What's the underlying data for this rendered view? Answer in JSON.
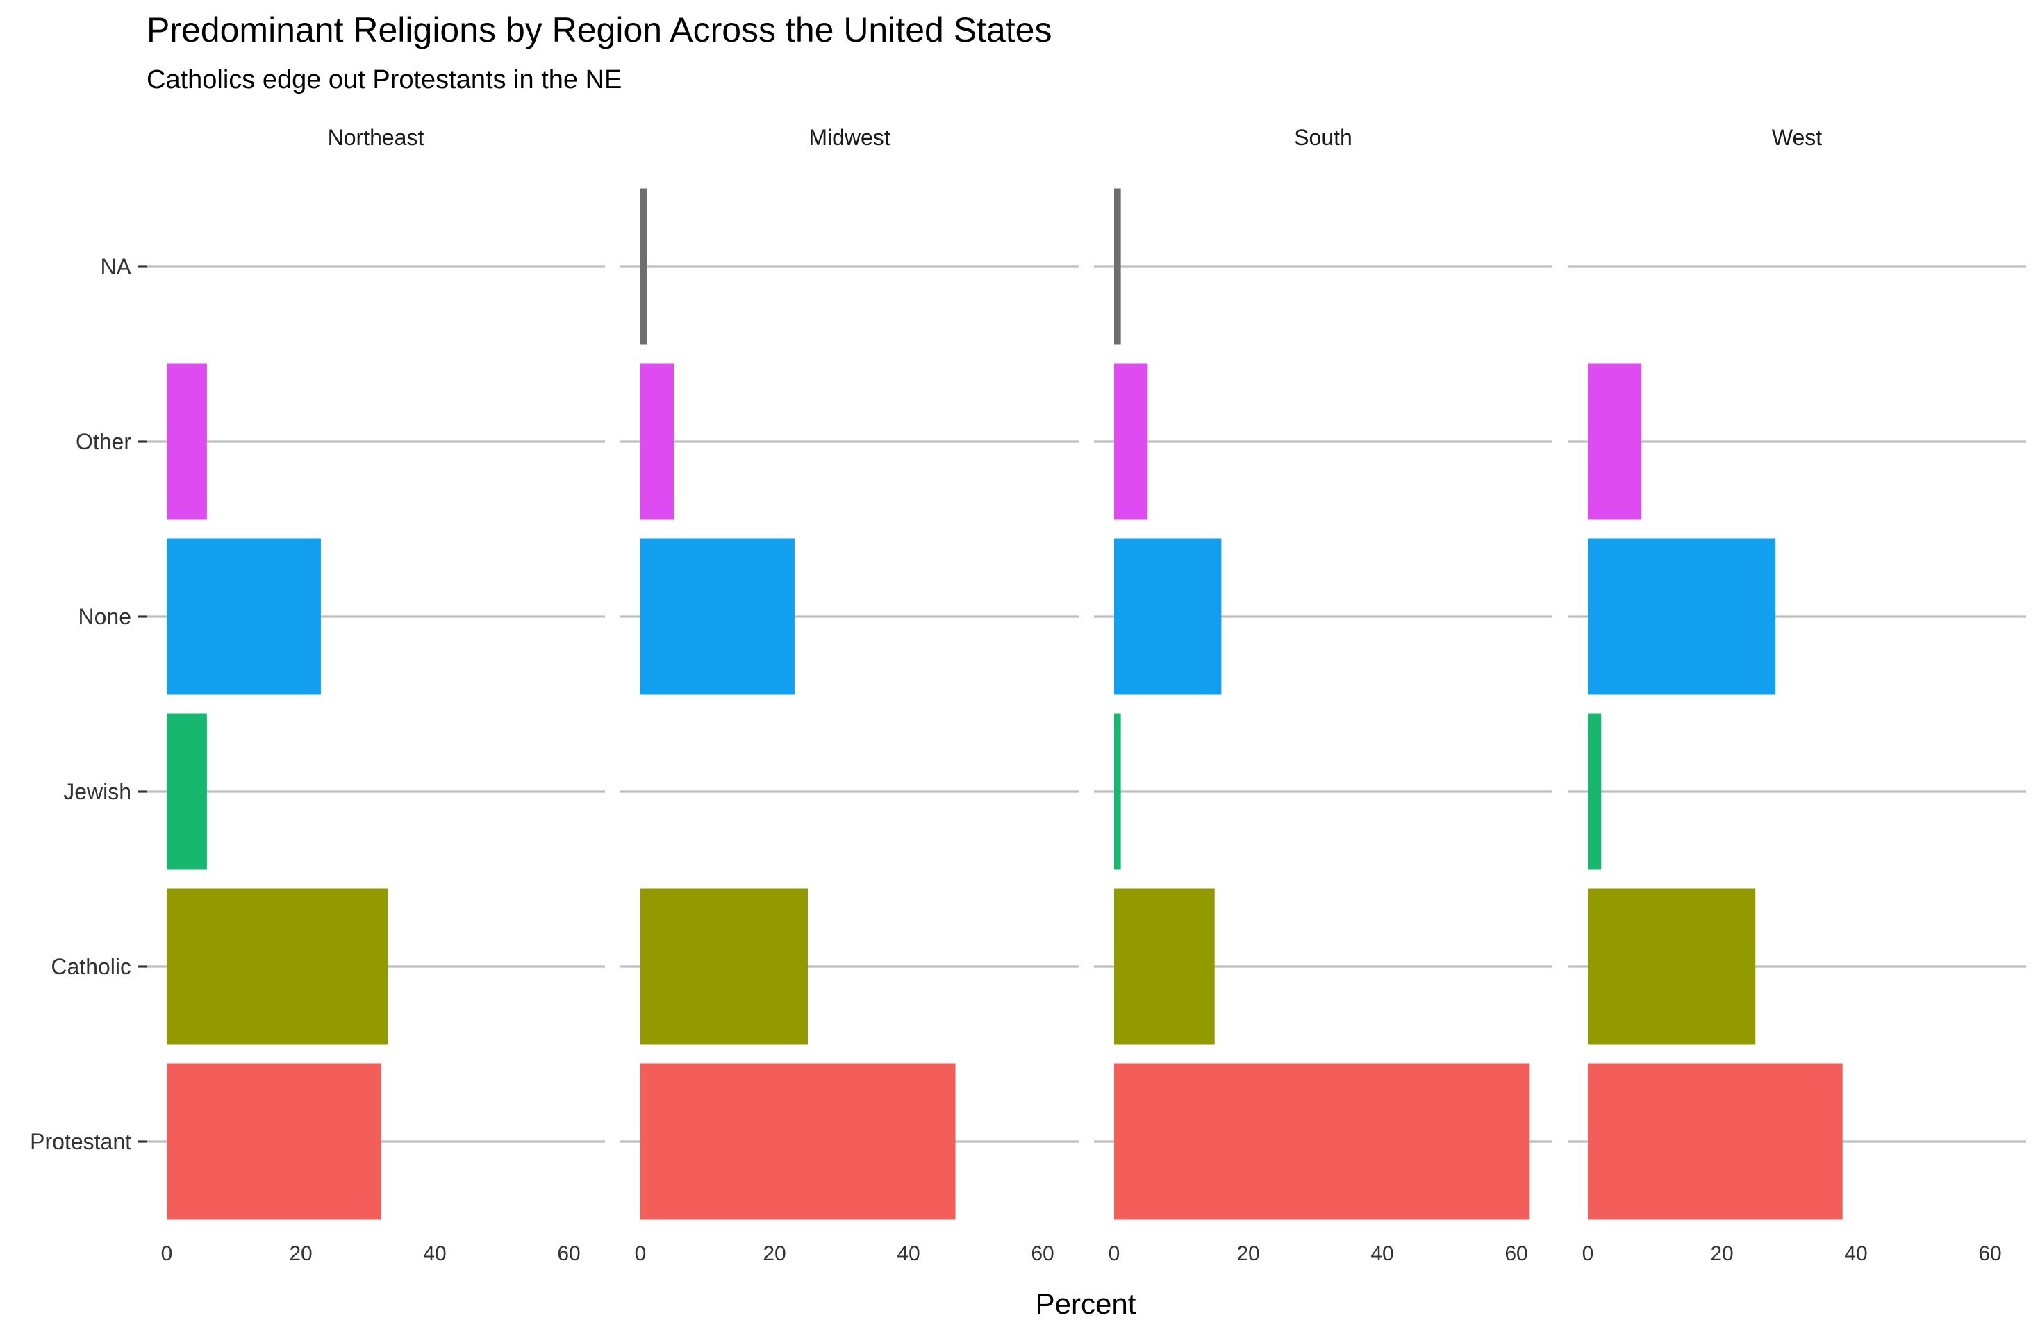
{
  "chart_data": {
    "type": "bar",
    "orientation": "horizontal",
    "title": "Predominant Religions by Region Across the United States",
    "subtitle": "Catholics edge out Protestants in the NE",
    "xlabel": "Percent",
    "ylabel": "",
    "xlim": [
      0,
      65
    ],
    "xticks": [
      "0",
      "20",
      "40",
      "60"
    ],
    "xtick_values": [
      0,
      20,
      40,
      60
    ],
    "categories": [
      "Protestant",
      "Catholic",
      "Jewish",
      "None",
      "Other",
      "NA"
    ],
    "colors": {
      "Protestant": "#f35e5a",
      "Catholic": "#939a00",
      "Jewish": "#17b76f",
      "None": "#129ff0",
      "Other": "#de4bf0",
      "NA": "#6e6e6e"
    },
    "grid": "horizontal major only",
    "legend": "none",
    "panels": [
      {
        "name": "Northeast",
        "values": {
          "Protestant": 32,
          "Catholic": 33,
          "Jewish": 6,
          "None": 23,
          "Other": 6,
          "NA": 0
        }
      },
      {
        "name": "Midwest",
        "values": {
          "Protestant": 47,
          "Catholic": 25,
          "Jewish": 0,
          "None": 23,
          "Other": 5,
          "NA": 1
        }
      },
      {
        "name": "South",
        "values": {
          "Protestant": 62,
          "Catholic": 15,
          "Jewish": 1,
          "None": 16,
          "Other": 5,
          "NA": 1
        }
      },
      {
        "name": "West",
        "values": {
          "Protestant": 38,
          "Catholic": 25,
          "Jewish": 2,
          "None": 28,
          "Other": 8,
          "NA": 0
        }
      }
    ]
  }
}
